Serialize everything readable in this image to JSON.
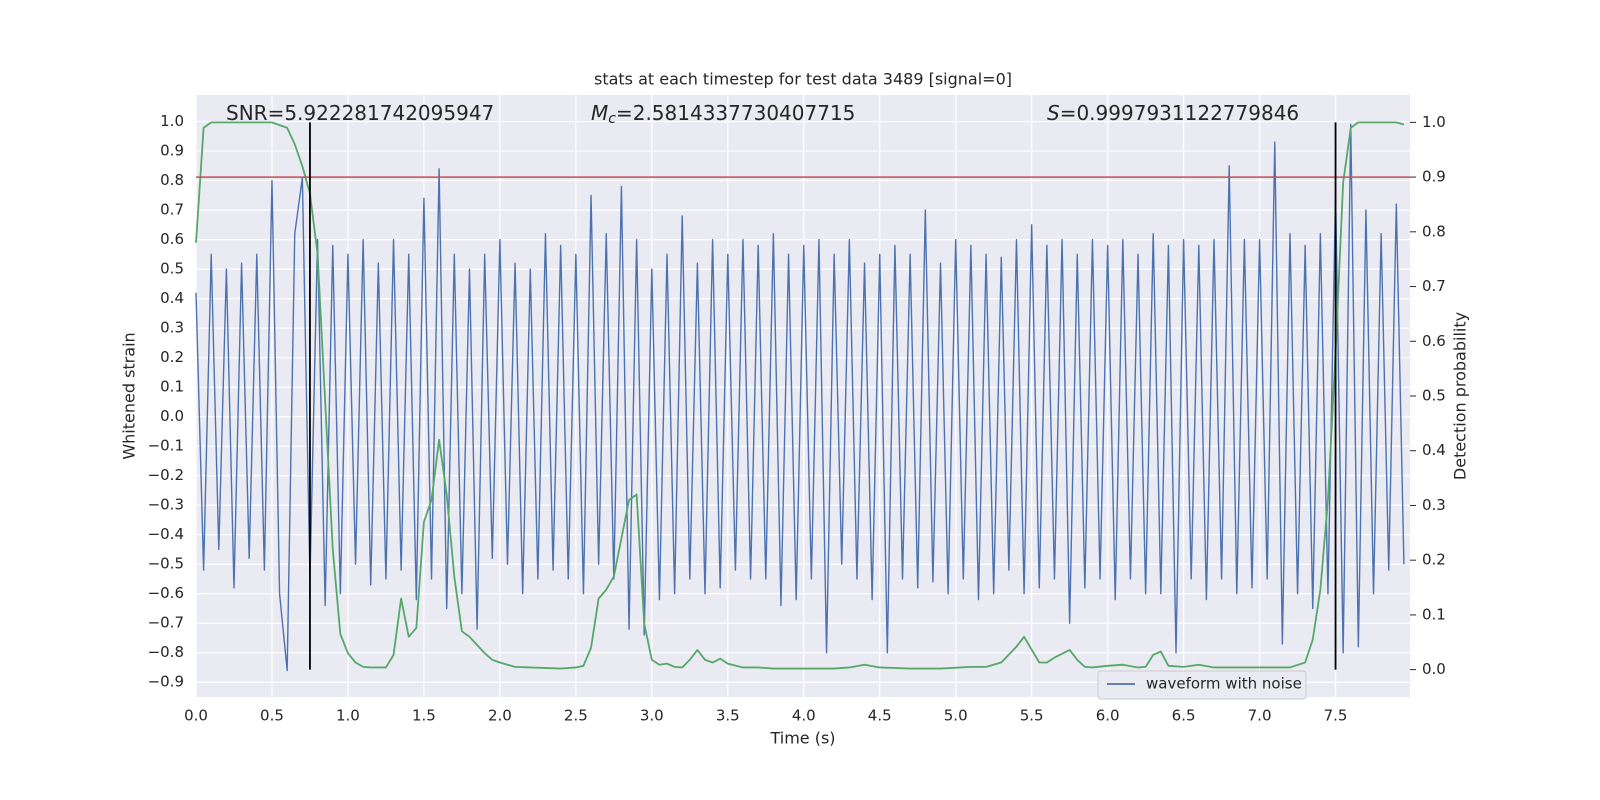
{
  "chart_data": {
    "type": "line",
    "title": "stats at each timestep for test data 3489 [signal=0]",
    "x_label": "Time (s)",
    "y_label": "Whitened strain",
    "y2_label": "Detection probability",
    "grid": true,
    "legend": "lower right",
    "xlim": [
      0,
      7.99
    ],
    "ylim": [
      -0.95,
      1.09
    ],
    "y2lim": [
      -0.05,
      1.05
    ],
    "xticks": [
      {
        "value": 0,
        "label": "0.0"
      },
      {
        "value": 0.5,
        "label": "0.5"
      },
      {
        "value": 1,
        "label": "1.0"
      },
      {
        "value": 1.5,
        "label": "1.5"
      },
      {
        "value": 2,
        "label": "2.0"
      },
      {
        "value": 2.5,
        "label": "2.5"
      },
      {
        "value": 3,
        "label": "3.0"
      },
      {
        "value": 3.5,
        "label": "3.5"
      },
      {
        "value": 4,
        "label": "4.0"
      },
      {
        "value": 4.5,
        "label": "4.5"
      },
      {
        "value": 5,
        "label": "5.0"
      },
      {
        "value": 5.5,
        "label": "5.5"
      },
      {
        "value": 6,
        "label": "6.0"
      },
      {
        "value": 6.5,
        "label": "6.5"
      },
      {
        "value": 7,
        "label": "7.0"
      },
      {
        "value": 7.5,
        "label": "7.5"
      }
    ],
    "yticks": [
      {
        "value": -0.9,
        "label": "−0.9"
      },
      {
        "value": -0.8,
        "label": "−0.8"
      },
      {
        "value": -0.7,
        "label": "−0.7"
      },
      {
        "value": -0.6,
        "label": "−0.6"
      },
      {
        "value": -0.5,
        "label": "−0.5"
      },
      {
        "value": -0.4,
        "label": "−0.4"
      },
      {
        "value": -0.3,
        "label": "−0.3"
      },
      {
        "value": -0.2,
        "label": "−0.2"
      },
      {
        "value": -0.1,
        "label": "−0.1"
      },
      {
        "value": 0,
        "label": "0.0"
      },
      {
        "value": 0.1,
        "label": "0.1"
      },
      {
        "value": 0.2,
        "label": "0.2"
      },
      {
        "value": 0.3,
        "label": "0.3"
      },
      {
        "value": 0.4,
        "label": "0.4"
      },
      {
        "value": 0.5,
        "label": "0.5"
      },
      {
        "value": 0.6,
        "label": "0.6"
      },
      {
        "value": 0.7,
        "label": "0.7"
      },
      {
        "value": 0.8,
        "label": "0.8"
      },
      {
        "value": 0.9,
        "label": "0.9"
      },
      {
        "value": 1,
        "label": "1.0"
      }
    ],
    "y2ticks": [
      {
        "value": 0,
        "label": "0.0"
      },
      {
        "value": 0.1,
        "label": "0.1"
      },
      {
        "value": 0.2,
        "label": "0.2"
      },
      {
        "value": 0.3,
        "label": "0.3"
      },
      {
        "value": 0.4,
        "label": "0.4"
      },
      {
        "value": 0.5,
        "label": "0.5"
      },
      {
        "value": 0.6,
        "label": "0.6"
      },
      {
        "value": 0.7,
        "label": "0.7"
      },
      {
        "value": 0.8,
        "label": "0.8"
      },
      {
        "value": 0.9,
        "label": "0.9"
      },
      {
        "value": 1,
        "label": "1.0"
      }
    ],
    "annotations": [
      {
        "symbol": "SNR",
        "italic": false,
        "text": "=5.922281742095947"
      },
      {
        "symbol": "M",
        "subscript": "c",
        "italic": true,
        "text": "=2.5814337730407715"
      },
      {
        "symbol": "S",
        "italic": true,
        "text": "=0.9997931122779846"
      }
    ],
    "hlines": [
      {
        "value": 0.9,
        "axis": "y2",
        "color": "#c44e52"
      }
    ],
    "vlines": [
      {
        "x": 0.75,
        "ymin": 0,
        "ymax": 1,
        "axis": "y2",
        "color": "#000000"
      },
      {
        "x": 7.5,
        "ymin": 0,
        "ymax": 1,
        "axis": "y2",
        "color": "#000000"
      }
    ],
    "series": [
      {
        "name": "waveform with noise",
        "color": "#4c72b0",
        "x": [
          0,
          0.05,
          0.1,
          0.15,
          0.2,
          0.25,
          0.3,
          0.35,
          0.4,
          0.45,
          0.5,
          0.55,
          0.6,
          0.65,
          0.7,
          0.75,
          0.8,
          0.85,
          0.9,
          0.95,
          1,
          1.05,
          1.1,
          1.15,
          1.2,
          1.25,
          1.3,
          1.35,
          1.4,
          1.45,
          1.5,
          1.55,
          1.6,
          1.65,
          1.7,
          1.75,
          1.8,
          1.85,
          1.9,
          1.95,
          2,
          2.05,
          2.1,
          2.15,
          2.2,
          2.25,
          2.3,
          2.35,
          2.4,
          2.45,
          2.5,
          2.55,
          2.6,
          2.65,
          2.7,
          2.75,
          2.8,
          2.85,
          2.9,
          2.95,
          3,
          3.05,
          3.1,
          3.15,
          3.2,
          3.25,
          3.3,
          3.35,
          3.4,
          3.45,
          3.5,
          3.55,
          3.6,
          3.65,
          3.7,
          3.75,
          3.8,
          3.85,
          3.9,
          3.95,
          4,
          4.05,
          4.1,
          4.15,
          4.2,
          4.25,
          4.3,
          4.35,
          4.4,
          4.45,
          4.5,
          4.55,
          4.6,
          4.65,
          4.7,
          4.75,
          4.8,
          4.85,
          4.9,
          4.95,
          5,
          5.05,
          5.1,
          5.15,
          5.2,
          5.25,
          5.3,
          5.35,
          5.4,
          5.45,
          5.5,
          5.55,
          5.6,
          5.65,
          5.7,
          5.75,
          5.8,
          5.85,
          5.9,
          5.95,
          6,
          6.05,
          6.1,
          6.15,
          6.2,
          6.25,
          6.3,
          6.35,
          6.4,
          6.45,
          6.5,
          6.55,
          6.6,
          6.65,
          6.7,
          6.75,
          6.8,
          6.85,
          6.9,
          6.95,
          7,
          7.05,
          7.1,
          7.15,
          7.2,
          7.25,
          7.3,
          7.35,
          7.4,
          7.45,
          7.5,
          7.55,
          7.6,
          7.65,
          7.7,
          7.75,
          7.8,
          7.85,
          7.9,
          7.95
        ],
        "values": [
          0.42,
          -0.52,
          0.55,
          -0.45,
          0.5,
          -0.58,
          0.52,
          -0.48,
          0.55,
          -0.52,
          0.8,
          -0.6,
          -0.86,
          0.62,
          0.81,
          -0.55,
          0.6,
          -0.64,
          0.58,
          -0.6,
          0.55,
          -0.5,
          0.6,
          -0.57,
          0.52,
          -0.55,
          0.6,
          -0.52,
          0.55,
          -0.62,
          0.74,
          -0.55,
          0.84,
          -0.65,
          0.55,
          -0.6,
          0.5,
          -0.72,
          0.55,
          -0.48,
          0.6,
          -0.5,
          0.52,
          -0.6,
          0.5,
          -0.55,
          0.62,
          -0.52,
          0.58,
          -0.55,
          0.55,
          -0.6,
          0.75,
          -0.5,
          0.62,
          -0.55,
          0.78,
          -0.72,
          0.6,
          -0.74,
          0.5,
          -0.62,
          0.55,
          -0.6,
          0.68,
          -0.55,
          0.52,
          -0.6,
          0.6,
          -0.58,
          0.55,
          -0.52,
          0.6,
          -0.55,
          0.58,
          -0.55,
          0.62,
          -0.64,
          0.55,
          -0.62,
          0.58,
          -0.55,
          0.6,
          -0.8,
          0.55,
          -0.5,
          0.6,
          -0.55,
          0.52,
          -0.62,
          0.55,
          -0.8,
          0.58,
          -0.55,
          0.55,
          -0.58,
          0.7,
          -0.56,
          0.52,
          -0.6,
          0.6,
          -0.55,
          0.58,
          -0.62,
          0.55,
          -0.6,
          0.54,
          -0.52,
          0.6,
          -0.6,
          0.65,
          -0.58,
          0.58,
          -0.55,
          0.6,
          -0.7,
          0.55,
          -0.58,
          0.6,
          -0.55,
          0.58,
          -0.62,
          0.6,
          -0.55,
          0.55,
          -0.6,
          0.62,
          -0.6,
          0.58,
          -0.8,
          0.6,
          -0.55,
          0.58,
          -0.62,
          0.6,
          -0.55,
          0.85,
          -0.6,
          0.6,
          -0.58,
          0.6,
          -0.55,
          0.93,
          -0.77,
          0.62,
          -0.6,
          0.58,
          -0.65,
          0.62,
          -0.6,
          0.75,
          -0.8,
          0.99,
          -0.78,
          0.7,
          -0.6,
          0.62,
          -0.52,
          0.72,
          -0.5
        ]
      },
      {
        "color": "#55a868",
        "axis": "y2",
        "x": [
          0,
          0.05,
          0.1,
          0.5,
          0.6,
          0.65,
          0.7,
          0.75,
          0.8,
          0.85,
          0.9,
          0.95,
          1,
          1.05,
          1.1,
          1.15,
          1.25,
          1.3,
          1.35,
          1.4,
          1.45,
          1.5,
          1.55,
          1.6,
          1.65,
          1.7,
          1.75,
          1.8,
          1.85,
          1.9,
          1.95,
          2,
          2.1,
          2.2,
          2.4,
          2.5,
          2.55,
          2.6,
          2.65,
          2.7,
          2.75,
          2.8,
          2.85,
          2.9,
          2.95,
          3,
          3.05,
          3.1,
          3.15,
          3.2,
          3.25,
          3.3,
          3.35,
          3.4,
          3.45,
          3.5,
          3.6,
          3.7,
          3.8,
          4,
          4.2,
          4.3,
          4.4,
          4.5,
          4.7,
          4.9,
          5.1,
          5.2,
          5.3,
          5.4,
          5.45,
          5.55,
          5.6,
          5.65,
          5.75,
          5.8,
          5.85,
          5.9,
          6,
          6.1,
          6.2,
          6.25,
          6.3,
          6.35,
          6.4,
          6.5,
          6.6,
          6.7,
          7,
          7.2,
          7.3,
          7.35,
          7.4,
          7.45,
          7.5,
          7.55,
          7.6,
          7.65,
          7.9,
          7.95
        ],
        "values": [
          0.78,
          0.99,
          1,
          1,
          0.99,
          0.96,
          0.92,
          0.87,
          0.76,
          0.49,
          0.22,
          0.065,
          0.03,
          0.013,
          0.005,
          0.004,
          0.004,
          0.027,
          0.13,
          0.06,
          0.076,
          0.27,
          0.31,
          0.42,
          0.32,
          0.17,
          0.07,
          0.06,
          0.045,
          0.03,
          0.018,
          0.013,
          0.005,
          0.004,
          0.002,
          0.004,
          0.007,
          0.04,
          0.13,
          0.146,
          0.17,
          0.24,
          0.31,
          0.32,
          0.084,
          0.018,
          0.009,
          0.011,
          0.005,
          0.004,
          0.018,
          0.036,
          0.018,
          0.013,
          0.02,
          0.011,
          0.004,
          0.004,
          0.002,
          0.002,
          0.002,
          0.004,
          0.009,
          0.004,
          0.002,
          0.002,
          0.005,
          0.005,
          0.013,
          0.042,
          0.06,
          0.013,
          0.013,
          0.022,
          0.036,
          0.018,
          0.005,
          0.004,
          0.007,
          0.009,
          0.004,
          0.005,
          0.027,
          0.033,
          0.007,
          0.005,
          0.009,
          0.004,
          0.004,
          0.004,
          0.013,
          0.055,
          0.146,
          0.31,
          0.58,
          0.89,
          0.99,
          1,
          1,
          0.996
        ]
      }
    ]
  }
}
